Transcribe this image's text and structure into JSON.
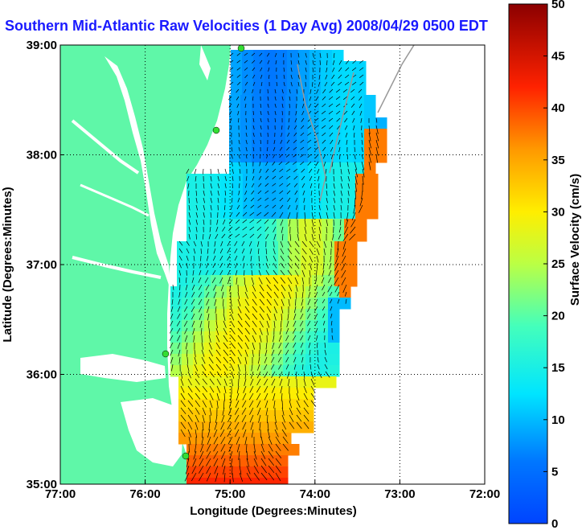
{
  "title": "Southern Mid-Atlantic Raw Velocities (1 Day Avg) 2008/04/29 0500 EDT",
  "map": {
    "xlabel": "Longitude (Degrees:Minutes)",
    "ylabel": "Latitude (Degrees:Minutes)",
    "lon_range": [
      -77,
      -72
    ],
    "lat_range": [
      35,
      39
    ],
    "lon_ticks": [
      "77:00",
      "76:00",
      "75:00",
      "74:00",
      "73:00",
      "72:00"
    ],
    "lat_ticks": [
      "39:00",
      "38:00",
      "37:00",
      "36:00",
      "35:00"
    ],
    "grid": "dotted",
    "land_color": "#5ff7a8",
    "station_color": "#33dd33"
  },
  "colorbar": {
    "label": "Surface Velocity (cm/s)",
    "ticks": [
      "50",
      "45",
      "40",
      "35",
      "30",
      "25",
      "20",
      "15",
      "10",
      "5",
      "0"
    ],
    "range": [
      0,
      50
    ],
    "colormap": "jet"
  }
}
